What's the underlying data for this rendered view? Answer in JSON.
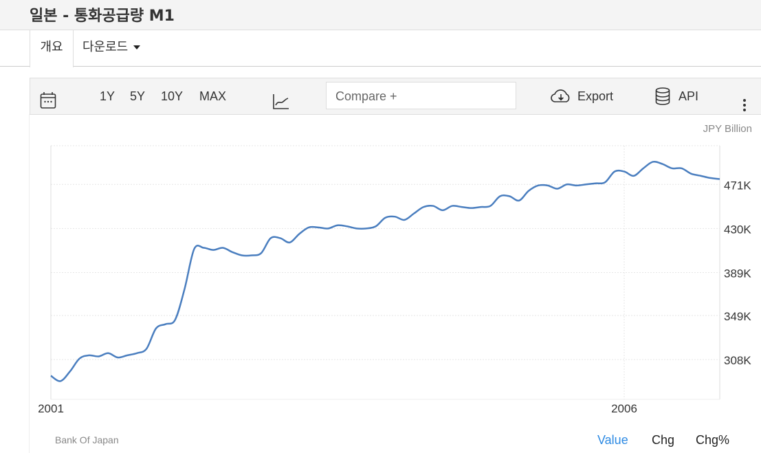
{
  "header": {
    "title": "일본 - 통화공급량 M1"
  },
  "tabs": [
    {
      "label": "개요",
      "active": true
    },
    {
      "label": "다운로드"
    }
  ],
  "toolbar": {
    "ranges": [
      "1Y",
      "5Y",
      "10Y",
      "MAX"
    ],
    "compare_placeholder": "Compare  +",
    "export_label": "Export",
    "api_label": "API",
    "icons": [
      "calendar-icon",
      "line-chart-icon",
      "cloud-download-icon",
      "database-icon",
      "more-vertical-icon"
    ]
  },
  "footer": {
    "source": "Bank Of Japan",
    "views": [
      "Value",
      "Chg",
      "Chg%"
    ],
    "active_view": "Value",
    "accent": "#2d8ae3"
  },
  "chart_data": {
    "type": "line",
    "ylabel": "JPY Billion",
    "line_color": "#4a7ebf",
    "x_start": "2001-01",
    "x_end": "2006-11",
    "frequency": "monthly",
    "xticks": [
      "2001",
      "2006"
    ],
    "yticks": [
      308,
      349,
      389,
      430,
      471
    ],
    "ytick_labels": [
      "308K",
      "349K",
      "389K",
      "430K",
      "471K"
    ],
    "ylim": [
      271,
      507
    ],
    "grid": true,
    "values": [
      293,
      288,
      297,
      309,
      312,
      311,
      314,
      310,
      312,
      314,
      318,
      337,
      341,
      345,
      374,
      411,
      412,
      410,
      412,
      408,
      405,
      405,
      407,
      421,
      421,
      417,
      425,
      431,
      431,
      430,
      433,
      432,
      430,
      430,
      432,
      440,
      441,
      438,
      444,
      450,
      451,
      447,
      451,
      450,
      449,
      450,
      451,
      460,
      460,
      456,
      465,
      470,
      470,
      467,
      471,
      470,
      471,
      472,
      473,
      483,
      483,
      479,
      486,
      492,
      490,
      486,
      486,
      481,
      479,
      477,
      476
    ]
  }
}
